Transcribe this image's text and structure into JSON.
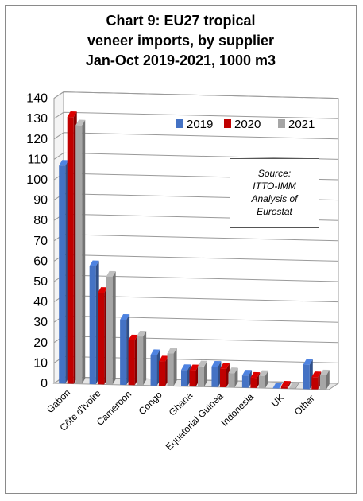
{
  "chart_data": {
    "type": "bar",
    "title_lines": [
      "Chart 9: EU27 tropical",
      "veneer imports, by supplier",
      "Jan-Oct 2019-2021, 1000 m3"
    ],
    "categories": [
      "Gabon",
      "Côte d'Ivoire",
      "Cameroon",
      "Congo",
      "Ghana",
      "Equatorial Guinea",
      "Indonesia",
      "UK",
      "Other"
    ],
    "series": [
      {
        "name": "2019",
        "color": "#4472c4",
        "values": [
          107,
          58,
          32,
          15,
          8,
          10,
          6,
          0,
          12
        ]
      },
      {
        "name": "2020",
        "color": "#c00000",
        "values": [
          131,
          45,
          22,
          12,
          8,
          9,
          5,
          1,
          6
        ]
      },
      {
        "name": "2021",
        "color": "#a6a6a6",
        "values": [
          127,
          53,
          24,
          16,
          10,
          7,
          6,
          0.5,
          7
        ]
      }
    ],
    "y_ticks": [
      "0",
      "10",
      "20",
      "30",
      "40",
      "50",
      "60",
      "70",
      "80",
      "90",
      "100",
      "110",
      "120",
      "130",
      "140"
    ],
    "ylim": [
      0,
      140
    ],
    "legend_position": "top-right",
    "grid": true,
    "annotation_lines": [
      "Source:",
      "ITTO-IMM",
      "Analysis of",
      "Eurostat"
    ]
  }
}
